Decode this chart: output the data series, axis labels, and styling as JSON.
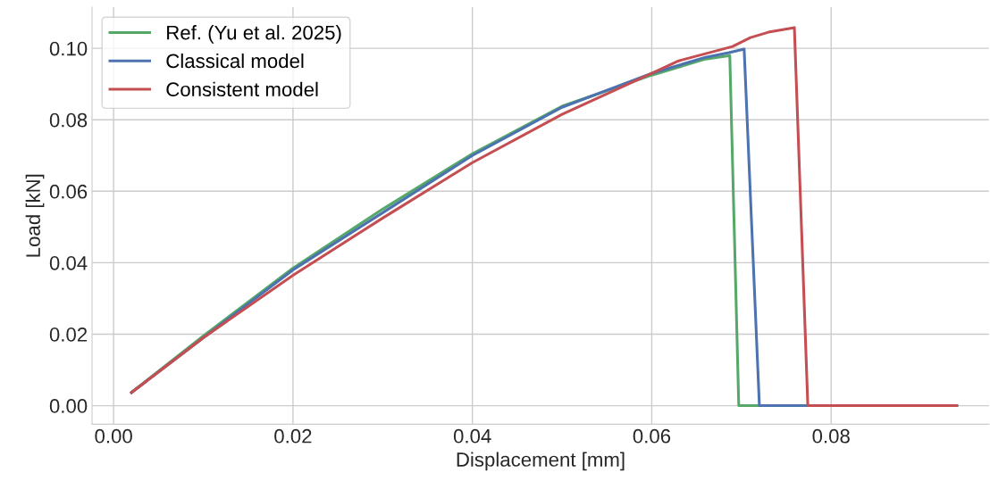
{
  "chart_data": {
    "type": "line",
    "xlabel": "Displacement [mm]",
    "ylabel": "Load [kN]",
    "xlim": [
      -0.0024,
      0.0976
    ],
    "ylim": [
      -0.0052,
      0.1115
    ],
    "xticks": [
      {
        "value": 0,
        "label": "0.00"
      },
      {
        "value": 0.02,
        "label": "0.02"
      },
      {
        "value": 0.04,
        "label": "0.04"
      },
      {
        "value": 0.06,
        "label": "0.06"
      },
      {
        "value": 0.08,
        "label": "0.08"
      }
    ],
    "yticks": [
      {
        "value": 0,
        "label": "0.00"
      },
      {
        "value": 0.02,
        "label": "0.02"
      },
      {
        "value": 0.04,
        "label": "0.04"
      },
      {
        "value": 0.06,
        "label": "0.06"
      },
      {
        "value": 0.08,
        "label": "0.08"
      },
      {
        "value": 0.1,
        "label": "0.10"
      }
    ],
    "grid": true,
    "legend": "top left",
    "marker": "none",
    "line_style": "solid",
    "series": [
      {
        "name": "Ref. (Yu et al. 2025)",
        "color": "#55a868",
        "x": [
          0.002,
          0.01,
          0.02,
          0.03,
          0.04,
          0.05,
          0.06,
          0.066,
          0.0687,
          0.0697,
          0.094
        ],
        "values": [
          0.0037,
          0.0195,
          0.0385,
          0.055,
          0.0705,
          0.0838,
          0.0925,
          0.097,
          0.098,
          0,
          0
        ]
      },
      {
        "name": "Classical model",
        "color": "#4c72b0",
        "x": [
          0.002,
          0.01,
          0.02,
          0.03,
          0.04,
          0.05,
          0.06,
          0.066,
          0.0686,
          0.0703,
          0.072,
          0.094
        ],
        "values": [
          0.0037,
          0.019,
          0.038,
          0.054,
          0.07,
          0.0835,
          0.093,
          0.0975,
          0.0988,
          0.0998,
          0,
          0
        ]
      },
      {
        "name": "Consistent model",
        "color": "#c44e52",
        "x": [
          0.002,
          0.01,
          0.02,
          0.03,
          0.04,
          0.05,
          0.06,
          0.063,
          0.066,
          0.069,
          0.071,
          0.073,
          0.0759,
          0.0774,
          0.094
        ],
        "values": [
          0.0037,
          0.019,
          0.0365,
          0.0525,
          0.068,
          0.0815,
          0.093,
          0.0965,
          0.0985,
          0.1005,
          0.103,
          0.1045,
          0.1058,
          0,
          0
        ]
      }
    ]
  }
}
